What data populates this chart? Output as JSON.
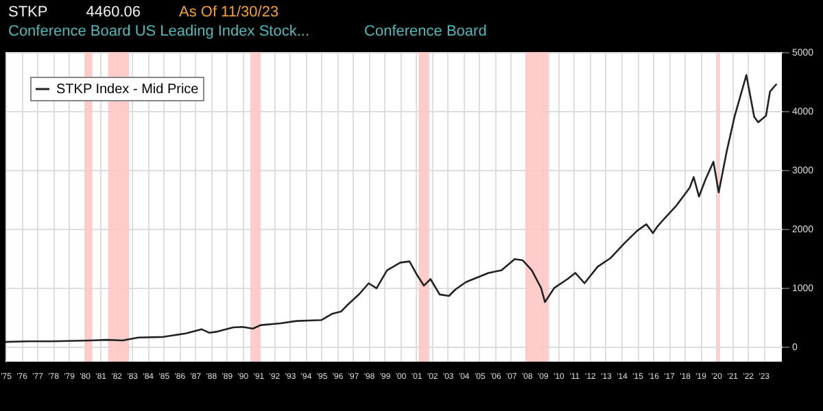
{
  "chart_data": {
    "type": "line",
    "title": "STKP",
    "subtitle": "Conference Board US Leading Index Stock...",
    "annotations": [
      "4460.06",
      "As Of 11/30/23",
      "Conference Board"
    ],
    "x": [
      "1975-01",
      "1976-06",
      "1978-01",
      "1979-06",
      "1980-06",
      "1981-06",
      "1982-06",
      "1983-06",
      "1985-01",
      "1986-06",
      "1987-06",
      "1987-12",
      "1988-06",
      "1989-06",
      "1990-01",
      "1990-09",
      "1991-03",
      "1992-06",
      "1993-06",
      "1994-06",
      "1995-01",
      "1995-09",
      "1996-04",
      "1996-09",
      "1997-06",
      "1998-01",
      "1998-07",
      "1999-03",
      "2000-01",
      "2000-08",
      "2001-02",
      "2001-07",
      "2001-12",
      "2002-07",
      "2003-02",
      "2003-07",
      "2004-03",
      "2005-08",
      "2006-06",
      "2007-04",
      "2007-10",
      "2008-05",
      "2008-12",
      "2009-03",
      "2009-10",
      "2010-08",
      "2011-02",
      "2011-09",
      "2012-07",
      "2013-05",
      "2014-03",
      "2015-01",
      "2015-08",
      "2016-01",
      "2016-04",
      "2016-09",
      "2017-07",
      "2018-05",
      "2018-08",
      "2018-12",
      "2019-05",
      "2019-11",
      "2020-03",
      "2020-09",
      "2021-03",
      "2021-12",
      "2022-06",
      "2022-09",
      "2023-03",
      "2023-06",
      "2023-11"
    ],
    "series": [
      {
        "name": "STKP Index - Mid Price",
        "color": "#222222",
        "values": [
          85,
          95,
          95,
          105,
          110,
          120,
          110,
          160,
          170,
          230,
          300,
          240,
          260,
          330,
          340,
          310,
          370,
          400,
          440,
          450,
          455,
          560,
          600,
          714,
          900,
          1080,
          995,
          1300,
          1430,
          1450,
          1210,
          1040,
          1150,
          890,
          865,
          975,
          1100,
          1255,
          1300,
          1490,
          1470,
          1300,
          1000,
          760,
          1000,
          1150,
          1255,
          1080,
          1360,
          1510,
          1750,
          1970,
          2080,
          1930,
          2030,
          2160,
          2400,
          2700,
          2880,
          2550,
          2840,
          3140,
          2620,
          3310,
          3900,
          4610,
          3900,
          3810,
          3920,
          4330,
          4460
        ]
      }
    ],
    "xlim": [
      "1975-01",
      "2024-03"
    ],
    "xticks": [
      {
        "value": "1975",
        "label": "'75"
      },
      {
        "value": "1976",
        "label": "'76"
      },
      {
        "value": "1977",
        "label": "'77"
      },
      {
        "value": "1978",
        "label": "'78"
      },
      {
        "value": "1979",
        "label": "'79"
      },
      {
        "value": "1980",
        "label": "'80"
      },
      {
        "value": "1981",
        "label": "'81"
      },
      {
        "value": "1982",
        "label": "'82"
      },
      {
        "value": "1983",
        "label": "'83"
      },
      {
        "value": "1984",
        "label": "'84"
      },
      {
        "value": "1985",
        "label": "'85"
      },
      {
        "value": "1986",
        "label": "'86"
      },
      {
        "value": "1987",
        "label": "'87"
      },
      {
        "value": "1988",
        "label": "'88"
      },
      {
        "value": "1989",
        "label": "'89"
      },
      {
        "value": "1990",
        "label": "'90"
      },
      {
        "value": "1991",
        "label": "'91"
      },
      {
        "value": "1992",
        "label": "'92"
      },
      {
        "value": "1993",
        "label": "'93"
      },
      {
        "value": "1994",
        "label": "'94"
      },
      {
        "value": "1995",
        "label": "'95"
      },
      {
        "value": "1996",
        "label": "'96"
      },
      {
        "value": "1997",
        "label": "'97"
      },
      {
        "value": "1998",
        "label": "'98"
      },
      {
        "value": "1999",
        "label": "'99"
      },
      {
        "value": "2000",
        "label": "'00"
      },
      {
        "value": "2001",
        "label": "'01"
      },
      {
        "value": "2002",
        "label": "'02"
      },
      {
        "value": "2003",
        "label": "'03"
      },
      {
        "value": "2004",
        "label": "'04"
      },
      {
        "value": "2005",
        "label": "'05"
      },
      {
        "value": "2006",
        "label": "'06"
      },
      {
        "value": "2007",
        "label": "'07"
      },
      {
        "value": "2008",
        "label": "'08"
      },
      {
        "value": "2009",
        "label": "'09"
      },
      {
        "value": "2010",
        "label": "'10"
      },
      {
        "value": "2011",
        "label": "'11"
      },
      {
        "value": "2012",
        "label": "'12"
      },
      {
        "value": "2013",
        "label": "'13"
      },
      {
        "value": "2014",
        "label": "'14"
      },
      {
        "value": "2015",
        "label": "'15"
      },
      {
        "value": "2016",
        "label": "'16"
      },
      {
        "value": "2017",
        "label": "'17"
      },
      {
        "value": "2018",
        "label": "'18"
      },
      {
        "value": "2019",
        "label": "'19"
      },
      {
        "value": "2020",
        "label": "'20"
      },
      {
        "value": "2021",
        "label": "'21"
      },
      {
        "value": "2022",
        "label": "'22"
      },
      {
        "value": "2023",
        "label": "'23"
      }
    ],
    "ylim": [
      -250,
      5000
    ],
    "yticks": [
      0,
      1000,
      2000,
      3000,
      4000,
      5000
    ],
    "bands": [
      {
        "axis": "x",
        "from": "1980-01",
        "to": "1980-07",
        "color": "#ffc6c6"
      },
      {
        "axis": "x",
        "from": "1981-07",
        "to": "1982-11",
        "color": "#ffc6c6"
      },
      {
        "axis": "x",
        "from": "1990-07",
        "to": "1991-03",
        "color": "#ffc6c6"
      },
      {
        "axis": "x",
        "from": "2001-03",
        "to": "2001-11",
        "color": "#ffc6c6"
      },
      {
        "axis": "x",
        "from": "2007-12",
        "to": "2009-06",
        "color": "#ffc6c6"
      },
      {
        "axis": "x",
        "from": "2020-02",
        "to": "2020-04",
        "color": "#ffc6c6"
      }
    ],
    "grid": true,
    "legend": "top left",
    "line_style": "solid",
    "marker": "none"
  }
}
